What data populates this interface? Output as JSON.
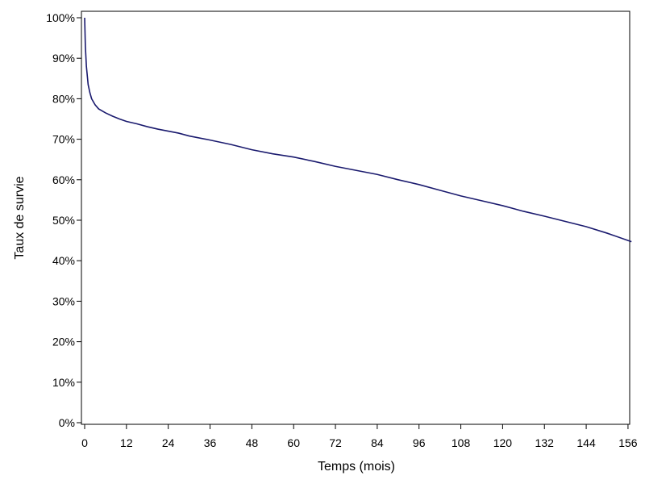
{
  "chart_data": {
    "type": "line",
    "title": "",
    "xlabel": "Temps (mois)",
    "ylabel": "Taux de survie",
    "xlim": [
      0,
      157
    ],
    "ylim": [
      0,
      1.0
    ],
    "x_ticks": [
      0,
      12,
      24,
      36,
      48,
      60,
      72,
      84,
      96,
      108,
      120,
      132,
      144,
      156
    ],
    "x_tick_labels": [
      "0",
      "12",
      "24",
      "36",
      "48",
      "60",
      "72",
      "84",
      "96",
      "108",
      "120",
      "132",
      "144",
      "156"
    ],
    "y_ticks": [
      0,
      0.1,
      0.2,
      0.3,
      0.4,
      0.5,
      0.6,
      0.7,
      0.8,
      0.9,
      1.0
    ],
    "y_tick_labels": [
      "0%",
      "10%",
      "20%",
      "30%",
      "40%",
      "50%",
      "60%",
      "70%",
      "80%",
      "90%",
      "100%"
    ],
    "grid": false,
    "line_color": "#1a1a6e",
    "series": [
      {
        "x": [
          0,
          0.2,
          0.5,
          1,
          1.5,
          2,
          3,
          4,
          5,
          6,
          8,
          10,
          12,
          15,
          18,
          21,
          24,
          27,
          30,
          36,
          42,
          48,
          54,
          60,
          66,
          72,
          78,
          84,
          90,
          96,
          102,
          108,
          114,
          120,
          126,
          132,
          138,
          144,
          150,
          156,
          157
        ],
        "y": [
          1.0,
          0.93,
          0.88,
          0.835,
          0.815,
          0.8,
          0.785,
          0.775,
          0.77,
          0.765,
          0.757,
          0.75,
          0.744,
          0.738,
          0.731,
          0.725,
          0.72,
          0.715,
          0.708,
          0.698,
          0.687,
          0.674,
          0.664,
          0.656,
          0.645,
          0.633,
          0.623,
          0.613,
          0.6,
          0.588,
          0.574,
          0.56,
          0.548,
          0.536,
          0.522,
          0.51,
          0.497,
          0.484,
          0.468,
          0.45,
          0.447
        ]
      }
    ]
  }
}
